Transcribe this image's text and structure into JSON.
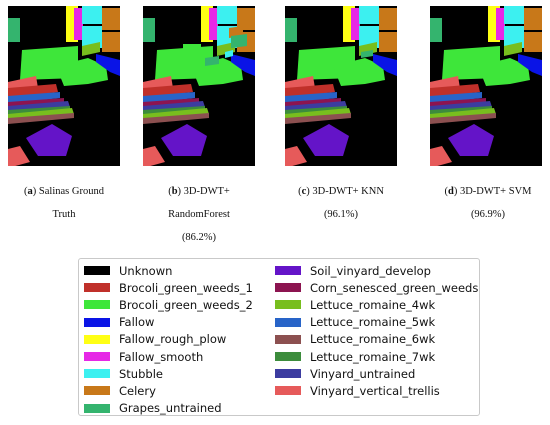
{
  "panels": [
    {
      "letter": "a",
      "line1": "Salinas Ground",
      "line2": "Truth",
      "line3": "",
      "variant": "gt"
    },
    {
      "letter": "b",
      "line1": "3D-DWT+",
      "line2": "RandomForest",
      "line3": "(86.2%)",
      "variant": "rf"
    },
    {
      "letter": "c",
      "line1": "3D-DWT+ KNN",
      "line2": "(96.1%)",
      "line3": "",
      "variant": "knn"
    },
    {
      "letter": "d",
      "line1": "3D-DWT+ SVM",
      "line2": "(96.9%)",
      "line3": "",
      "variant": "svm"
    }
  ],
  "legend": [
    {
      "label": "Unknown",
      "color": "#000000"
    },
    {
      "label": "Brocoli_green_weeds_1",
      "color": "#c0302a"
    },
    {
      "label": "Brocoli_green_weeds_2",
      "color": "#3ee63a"
    },
    {
      "label": "Fallow",
      "color": "#0a14e6"
    },
    {
      "label": "Fallow_rough_plow",
      "color": "#ffff14"
    },
    {
      "label": "Fallow_smooth",
      "color": "#e628e6"
    },
    {
      "label": "Stubble",
      "color": "#3cf0f0"
    },
    {
      "label": "Celery",
      "color": "#c87819"
    },
    {
      "label": "Grapes_untrained",
      "color": "#34b46e"
    },
    {
      "label": "Soil_vinyard_develop",
      "color": "#6414c8"
    },
    {
      "label": "Corn_senesced_green_weeds",
      "color": "#8c1450"
    },
    {
      "label": "Lettuce_romaine_4wk",
      "color": "#78be1e"
    },
    {
      "label": "Lettuce_romaine_5wk",
      "color": "#2864c8"
    },
    {
      "label": "Lettuce_romaine_6wk",
      "color": "#8c5050"
    },
    {
      "label": "Lettuce_romaine_7wk",
      "color": "#3c8c3c"
    },
    {
      "label": "Vinyard_untrained",
      "color": "#3c3ca0"
    },
    {
      "label": "Vinyard_vertical_trellis",
      "color": "#e65a5a"
    }
  ]
}
